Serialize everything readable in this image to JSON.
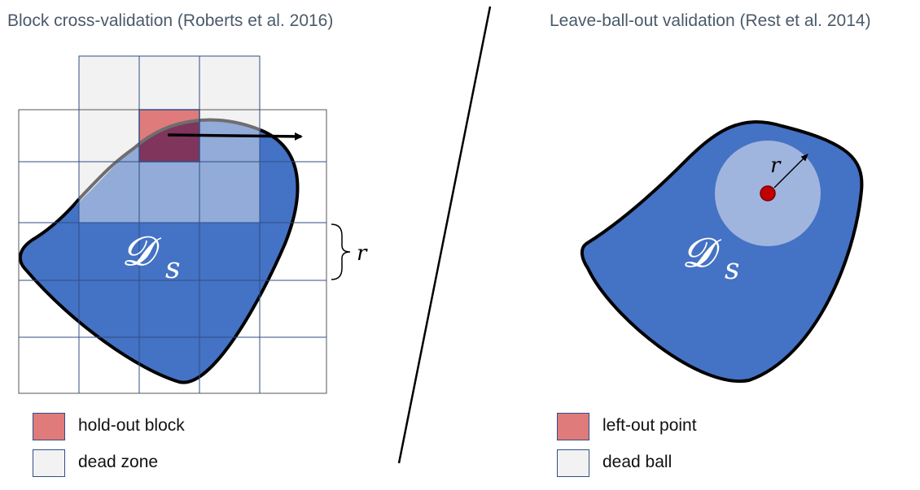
{
  "left_panel": {
    "title": "Block cross-validation (Roberts et al. 2016)",
    "domain_label": "𝓓",
    "domain_subscript": "s",
    "radius_label": "r",
    "legend": [
      {
        "label": "hold-out block",
        "swatch": "red"
      },
      {
        "label": "dead zone",
        "swatch": "grey"
      }
    ]
  },
  "right_panel": {
    "title": "Leave-ball-out validation (Rest et al. 2014)",
    "domain_label": "𝓓",
    "domain_subscript": "s",
    "radius_label": "r",
    "legend": [
      {
        "label": "left-out point",
        "swatch": "red"
      },
      {
        "label": "dead ball",
        "swatch": "grey"
      }
    ]
  },
  "colors": {
    "domain_fill": "#4472c4",
    "holdout_red": "#e07b7b",
    "dead_zone_grey": "#f2f2f2",
    "point_red": "#c00000",
    "grid_line": "#2f4f86"
  }
}
